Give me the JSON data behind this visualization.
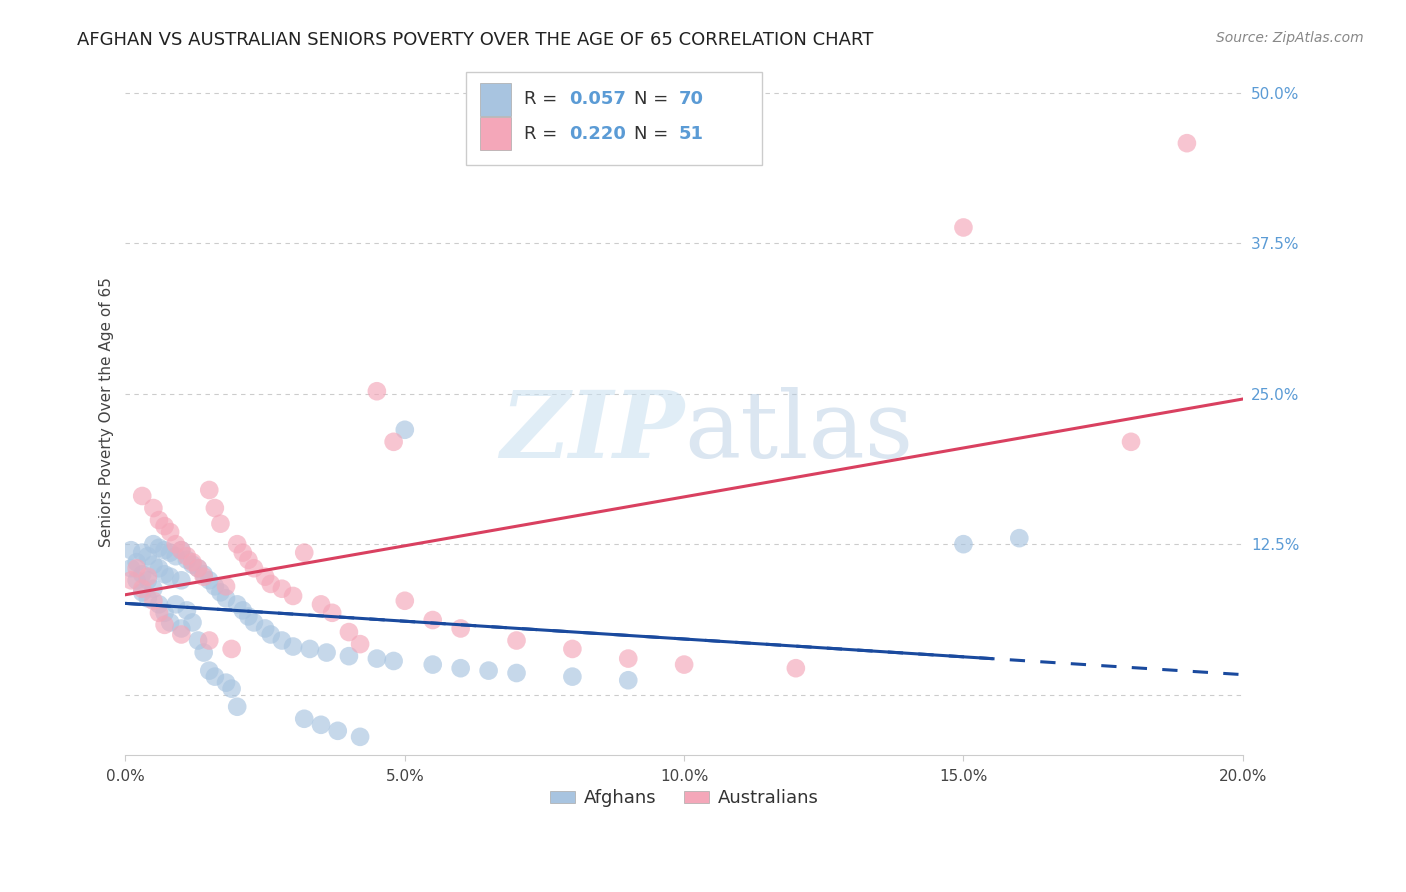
{
  "title": "AFGHAN VS AUSTRALIAN SENIORS POVERTY OVER THE AGE OF 65 CORRELATION CHART",
  "source": "Source: ZipAtlas.com",
  "ylabel": "Seniors Poverty Over the Age of 65",
  "xlim": [
    0.0,
    0.2
  ],
  "ylim": [
    -0.05,
    0.52
  ],
  "xticks": [
    0.0,
    0.05,
    0.1,
    0.15,
    0.2
  ],
  "xtick_labels": [
    "0.0%",
    "5.0%",
    "10.0%",
    "15.0%",
    "20.0%"
  ],
  "ytick_labels": [
    "",
    "12.5%",
    "25.0%",
    "37.5%",
    "50.0%"
  ],
  "ytick_vals": [
    0.0,
    0.125,
    0.25,
    0.375,
    0.5
  ],
  "afghan_color": "#a8c4e0",
  "australian_color": "#f4a7b9",
  "afghan_line_color": "#1a4a9e",
  "australian_line_color": "#d94060",
  "r_afghan": 0.057,
  "n_afghan": 70,
  "r_australian": 0.22,
  "n_australian": 51,
  "background_color": "#ffffff",
  "grid_color": "#cccccc",
  "title_fontsize": 13,
  "axis_label_fontsize": 11,
  "tick_fontsize": 11,
  "source_fontsize": 10,
  "afghans_x": [
    0.001,
    0.001,
    0.002,
    0.002,
    0.003,
    0.003,
    0.003,
    0.004,
    0.004,
    0.004,
    0.005,
    0.005,
    0.005,
    0.006,
    0.006,
    0.006,
    0.007,
    0.007,
    0.007,
    0.008,
    0.008,
    0.008,
    0.009,
    0.009,
    0.01,
    0.01,
    0.01,
    0.011,
    0.011,
    0.012,
    0.012,
    0.013,
    0.013,
    0.014,
    0.014,
    0.015,
    0.015,
    0.016,
    0.016,
    0.017,
    0.018,
    0.018,
    0.019,
    0.02,
    0.02,
    0.021,
    0.022,
    0.023,
    0.025,
    0.026,
    0.028,
    0.03,
    0.032,
    0.033,
    0.035,
    0.036,
    0.038,
    0.04,
    0.042,
    0.045,
    0.048,
    0.05,
    0.055,
    0.06,
    0.065,
    0.07,
    0.08,
    0.09,
    0.15,
    0.16
  ],
  "afghans_y": [
    0.12,
    0.105,
    0.11,
    0.095,
    0.118,
    0.1,
    0.085,
    0.115,
    0.095,
    0.08,
    0.125,
    0.108,
    0.088,
    0.122,
    0.105,
    0.075,
    0.12,
    0.1,
    0.068,
    0.118,
    0.098,
    0.06,
    0.115,
    0.075,
    0.12,
    0.095,
    0.055,
    0.112,
    0.07,
    0.108,
    0.06,
    0.105,
    0.045,
    0.1,
    0.035,
    0.095,
    0.02,
    0.09,
    0.015,
    0.085,
    0.08,
    0.01,
    0.005,
    0.075,
    -0.01,
    0.07,
    0.065,
    0.06,
    0.055,
    0.05,
    0.045,
    0.04,
    -0.02,
    0.038,
    -0.025,
    0.035,
    -0.03,
    0.032,
    -0.035,
    0.03,
    0.028,
    0.22,
    0.025,
    0.022,
    0.02,
    0.018,
    0.015,
    0.012,
    0.125,
    0.13
  ],
  "australians_x": [
    0.001,
    0.002,
    0.003,
    0.003,
    0.004,
    0.005,
    0.005,
    0.006,
    0.006,
    0.007,
    0.007,
    0.008,
    0.009,
    0.01,
    0.01,
    0.011,
    0.012,
    0.013,
    0.014,
    0.015,
    0.015,
    0.016,
    0.017,
    0.018,
    0.019,
    0.02,
    0.021,
    0.022,
    0.023,
    0.025,
    0.026,
    0.028,
    0.03,
    0.032,
    0.035,
    0.037,
    0.04,
    0.042,
    0.045,
    0.048,
    0.05,
    0.055,
    0.06,
    0.07,
    0.08,
    0.09,
    0.1,
    0.12,
    0.15,
    0.18,
    0.19
  ],
  "australians_y": [
    0.095,
    0.105,
    0.088,
    0.165,
    0.098,
    0.155,
    0.078,
    0.145,
    0.068,
    0.14,
    0.058,
    0.135,
    0.125,
    0.12,
    0.05,
    0.115,
    0.11,
    0.105,
    0.098,
    0.17,
    0.045,
    0.155,
    0.142,
    0.09,
    0.038,
    0.125,
    0.118,
    0.112,
    0.105,
    0.098,
    0.092,
    0.088,
    0.082,
    0.118,
    0.075,
    0.068,
    0.052,
    0.042,
    0.252,
    0.21,
    0.078,
    0.062,
    0.055,
    0.045,
    0.038,
    0.03,
    0.025,
    0.022,
    0.388,
    0.21,
    0.458
  ]
}
